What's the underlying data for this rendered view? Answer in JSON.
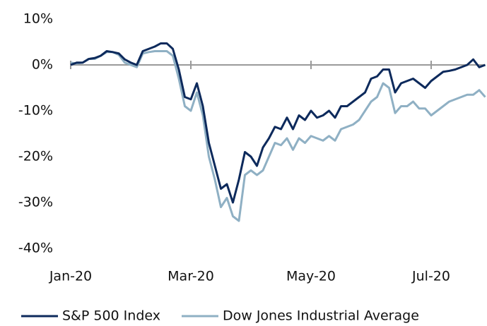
{
  "chart_data": {
    "type": "line",
    "categories": [
      "Jan-20",
      null,
      null,
      null,
      null,
      null,
      null,
      null,
      null,
      null,
      null,
      null,
      null,
      null,
      null,
      null,
      null,
      null,
      null,
      null,
      "Mar-20",
      null,
      null,
      null,
      null,
      null,
      null,
      null,
      null,
      null,
      null,
      null,
      null,
      null,
      null,
      null,
      null,
      null,
      null,
      null,
      "May-20",
      null,
      null,
      null,
      null,
      null,
      null,
      null,
      null,
      null,
      null,
      null,
      null,
      null,
      null,
      null,
      null,
      null,
      null,
      null,
      "Jul-20",
      null,
      null,
      null,
      null,
      null,
      null,
      null,
      null,
      null
    ],
    "series": [
      {
        "name": "S&P 500 Index",
        "color": "#0d2a5c",
        "values": [
          0,
          0.5,
          0.5,
          1.3,
          1.5,
          2,
          3,
          2.8,
          2.5,
          1.2,
          0.5,
          0,
          3,
          3.5,
          4,
          4.7,
          4.7,
          3.5,
          -1,
          -7,
          -7.5,
          -4,
          -9,
          -17,
          -22,
          -27,
          -26,
          -30,
          -25,
          -19,
          -20,
          -22,
          -18,
          -16,
          -13.5,
          -14,
          -11.5,
          -14,
          -11,
          -12,
          -10,
          -11.5,
          -11,
          -10,
          -11.5,
          -9,
          -9,
          -8,
          -7,
          -6,
          -3,
          -2.5,
          -1,
          -1,
          -6,
          -4,
          -3.5,
          -3,
          -4,
          -5,
          -3.5,
          -2.5,
          -1.5,
          -1.3,
          -1,
          -0.5,
          0,
          1.2,
          -0.5,
          0
        ]
      },
      {
        "name": "Dow Jones Industrial Average",
        "color": "#8fb0c4",
        "values": [
          0.5,
          0.3,
          0.5,
          1.3,
          1.3,
          2,
          2.8,
          2.8,
          2.2,
          0.5,
          0,
          -0.5,
          2.5,
          2.8,
          3.0,
          3.0,
          3.0,
          2,
          -3,
          -9,
          -10,
          -6,
          -11,
          -20,
          -25,
          -31,
          -29,
          -33,
          -34,
          -24,
          -23,
          -24,
          -23,
          -20,
          -17,
          -17.5,
          -16,
          -18.5,
          -16,
          -17,
          -15.5,
          -16,
          -16.5,
          -15.5,
          -16.5,
          -14,
          -13.5,
          -13,
          -12,
          -10,
          -8,
          -7,
          -4,
          -5,
          -10.5,
          -9,
          -9,
          -8,
          -9.5,
          -9.5,
          -11,
          -10,
          -9,
          -8,
          -7.5,
          -7,
          -6.5,
          -6.5,
          -5.5,
          -7
        ]
      }
    ],
    "ylim": [
      -40,
      10
    ],
    "yticks": [
      {
        "value": 10,
        "label": "10%"
      },
      {
        "value": 0,
        "label": "0%"
      },
      {
        "value": -10,
        "label": "-10%"
      },
      {
        "value": -20,
        "label": "-20%"
      },
      {
        "value": -30,
        "label": "-30%"
      },
      {
        "value": -40,
        "label": "-40%"
      }
    ],
    "grid": false,
    "legend": "bottom"
  }
}
